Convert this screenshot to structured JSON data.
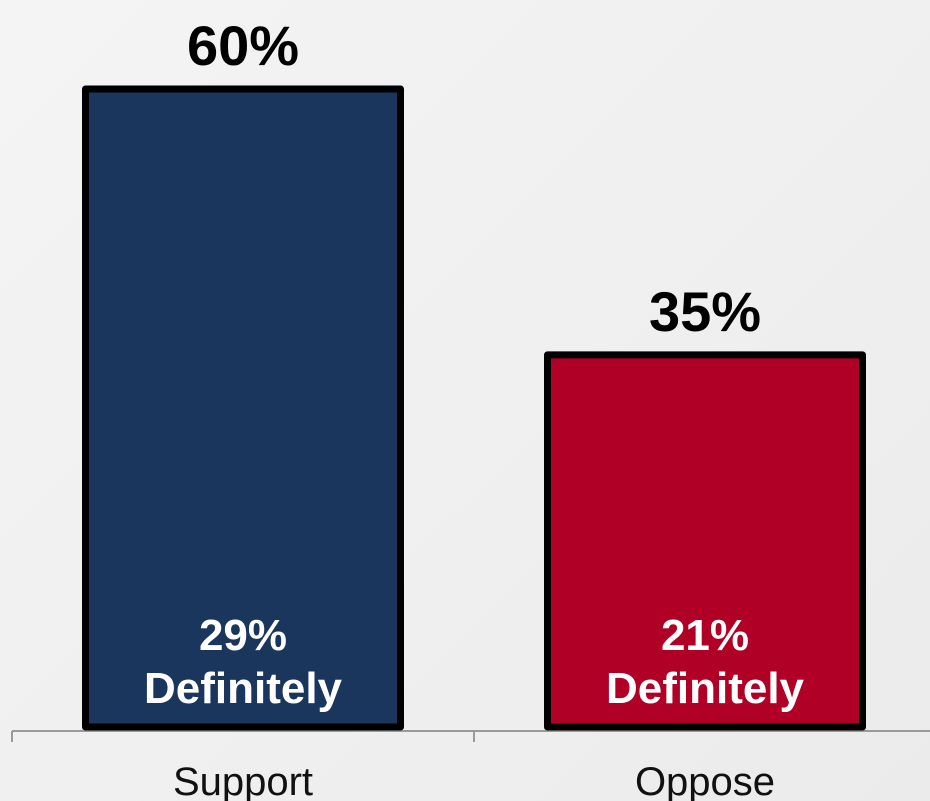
{
  "chart_data": {
    "type": "bar",
    "categories": [
      "Support",
      "Oppose"
    ],
    "values": [
      60,
      35
    ],
    "value_labels": [
      "60%",
      "35%"
    ],
    "inner_labels": [
      {
        "pct": "29%",
        "text": "Definitely"
      },
      {
        "pct": "21%",
        "text": "Definitely"
      }
    ],
    "definitely_values": [
      29,
      21
    ],
    "colors": [
      "#1b365d",
      "#b10026"
    ],
    "outline_color": "#000000",
    "ylim": [
      0,
      60
    ],
    "grid": false,
    "legend": "none",
    "title": "",
    "xlabel": "",
    "ylabel": ""
  }
}
